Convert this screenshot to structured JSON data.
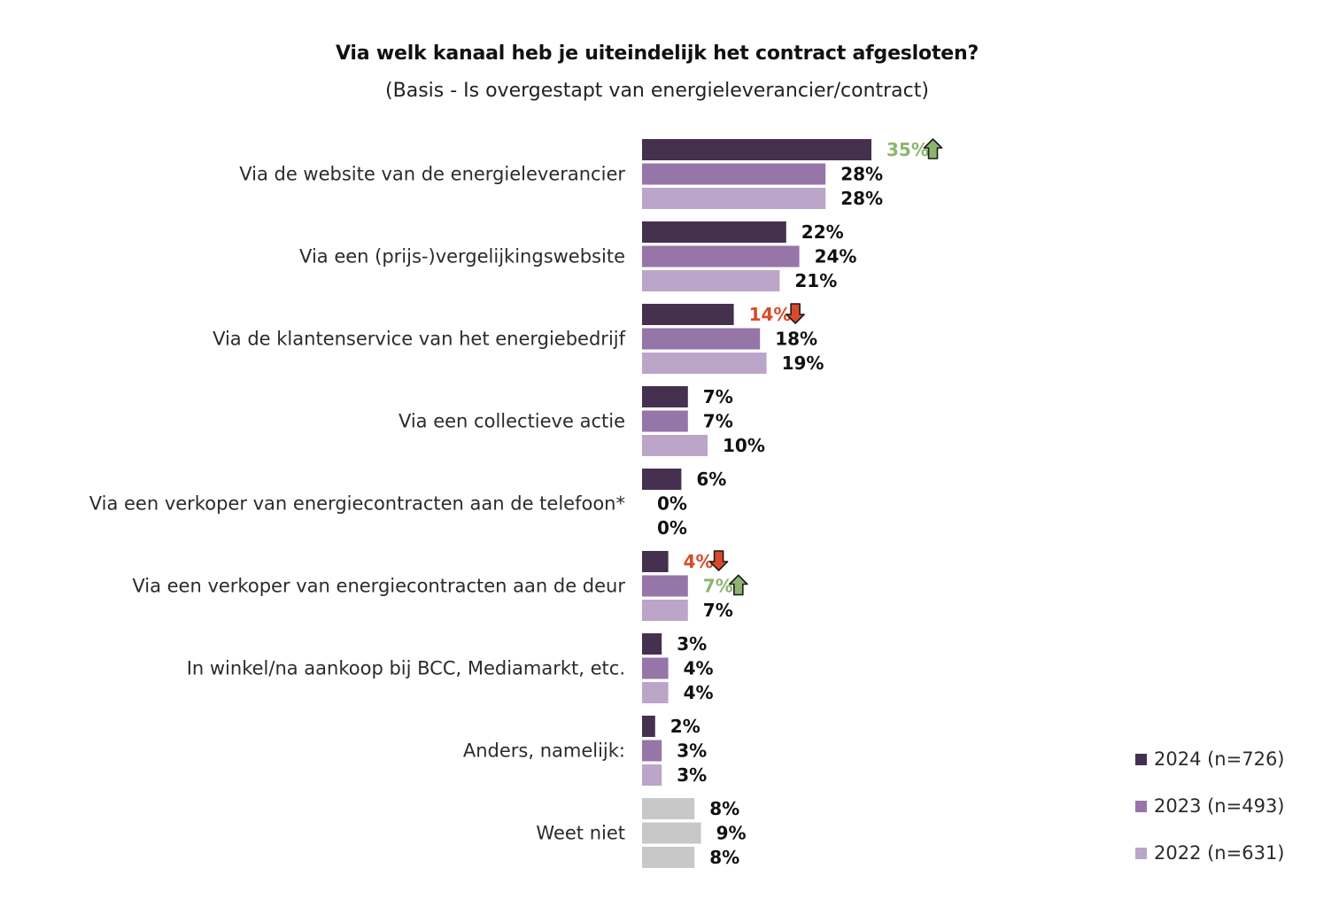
{
  "title": "Via welk kanaal heb je uiteindelijk het contract afgesloten?",
  "subtitle": "(Basis - Is overgestapt van energieleverancier/contract)",
  "colors": {
    "s2024": "#45304f",
    "s2023": "#9675a8",
    "s2022": "#bba5c8",
    "unknown": "#c8c8c8",
    "text": "#111111",
    "up": "#8bb56e",
    "down": "#d94a2a"
  },
  "legend": [
    {
      "label": "2024 (n=726)",
      "color": "#45304f"
    },
    {
      "label": "2023 (n=493)",
      "color": "#9675a8"
    },
    {
      "label": "2022 (n=631)",
      "color": "#bba5c8"
    }
  ],
  "chart_data": {
    "type": "bar",
    "orientation": "horizontal",
    "title": "Via welk kanaal heb je uiteindelijk het contract afgesloten?",
    "subtitle": "(Basis - Is overgestapt van energieleverancier/contract)",
    "categories": [
      "Via de website van de energieleverancier",
      "Via een (prijs-)vergelijkingswebsite",
      "Via de klantenservice van het energiebedrijf",
      "Via een collectieve actie",
      "Via een verkoper van energiecontracten aan de telefoon*",
      "Via een verkoper van energiecontracten aan de deur",
      "In winkel/na aankoop bij BCC, Mediamarkt, etc.",
      "Anders, namelijk:",
      "Weet niet"
    ],
    "series": [
      {
        "name": "2024 (n=726)",
        "values": [
          35,
          22,
          14,
          7,
          6,
          4,
          3,
          2,
          8
        ],
        "labels": [
          "35%",
          "22%",
          "14%",
          "7%",
          "6%",
          "4%",
          "3%",
          "2%",
          "8%"
        ],
        "trend": [
          "up",
          null,
          "down",
          null,
          null,
          "down",
          null,
          null,
          null
        ]
      },
      {
        "name": "2023 (n=493)",
        "values": [
          28,
          24,
          18,
          7,
          0,
          7,
          4,
          3,
          9
        ],
        "labels": [
          "28%",
          "24%",
          "18%",
          "7%",
          "0%",
          "7%",
          "4%",
          "3%",
          "9%"
        ],
        "trend": [
          null,
          null,
          null,
          null,
          null,
          "up",
          null,
          null,
          null
        ]
      },
      {
        "name": "2022 (n=631)",
        "values": [
          28,
          21,
          19,
          10,
          0,
          7,
          4,
          3,
          8
        ],
        "labels": [
          "28%",
          "21%",
          "19%",
          "10%",
          "0%",
          "7%",
          "4%",
          "3%",
          "8%"
        ],
        "trend": [
          null,
          null,
          null,
          null,
          null,
          null,
          null,
          null,
          null
        ]
      }
    ],
    "grey_category": "Weet niet",
    "legend_position": "bottom-right",
    "grid": false
  }
}
